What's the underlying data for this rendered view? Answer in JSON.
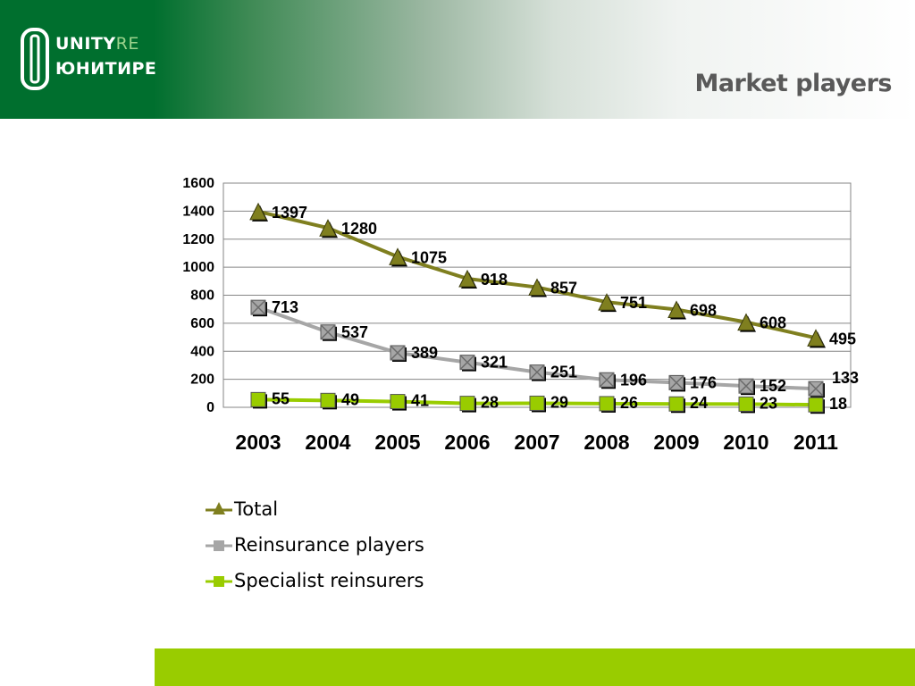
{
  "header": {
    "logo_top_main": "UNITY",
    "logo_top_accent": "RE",
    "logo_bottom_main": "ЮНИТИ",
    "logo_bottom_accent": "РЕ",
    "title": "Market players"
  },
  "colors": {
    "header_green": "#006f2e",
    "footer_green": "#99cc00",
    "total": "#7f7f1f",
    "reinsurance": "#a6a6a6",
    "specialist": "#99cc00"
  },
  "chart_data": {
    "type": "line",
    "title": "",
    "xlabel": "",
    "ylabel": "",
    "ylim": [
      0,
      1600
    ],
    "yticks": [
      0,
      200,
      400,
      600,
      800,
      1000,
      1200,
      1400,
      1600
    ],
    "grid": true,
    "legend_position": "bottom-left",
    "categories": [
      "2003",
      "2004",
      "2005",
      "2006",
      "2007",
      "2008",
      "2009",
      "2010",
      "2011"
    ],
    "series": [
      {
        "name": "Total",
        "marker": "triangle",
        "values": [
          1397,
          1280,
          1075,
          918,
          857,
          751,
          698,
          608,
          495
        ]
      },
      {
        "name": "Reinsurance players",
        "marker": "square-x",
        "values": [
          713,
          537,
          389,
          321,
          251,
          196,
          176,
          152,
          133
        ]
      },
      {
        "name": "Specialist reinsurers",
        "marker": "square",
        "values": [
          55,
          49,
          41,
          28,
          29,
          26,
          24,
          23,
          18
        ]
      }
    ]
  }
}
